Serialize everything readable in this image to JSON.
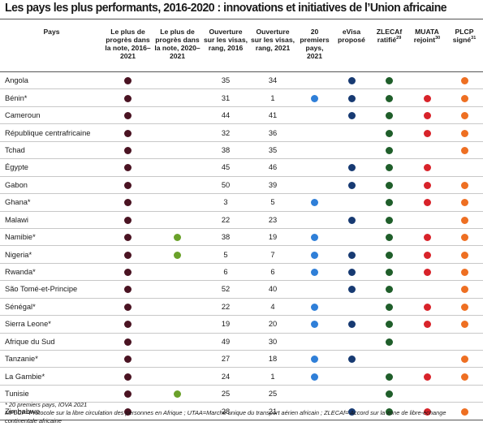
{
  "title": "Les pays les plus performants, 2016-2020 : innovations et initiatives de l’Union africaine",
  "colors": {
    "progress_2016_2021": "#4a1322",
    "progress_2020_2021": "#6aa12a",
    "top20": "#2f7fd8",
    "evisa": "#173a72",
    "zlecaf": "#1f5e2a",
    "muata": "#d8232a",
    "plcp": "#ee6f22"
  },
  "headers": {
    "country": "Pays",
    "progress_2016_2021": "Le plus de progrès dans la note, 2016–2021",
    "progress_2020_2021": "Le plus de progrès dans la note, 2020–2021",
    "visa_2016": "Ouverture sur les visas, rang, 2016",
    "visa_2021": "Ouverture sur les visas, rang, 2021",
    "top20": "20 premiers pays, 2021",
    "evisa": "eVisa proposé",
    "zlecaf": "ZLECAf ratifié",
    "zlecaf_sup": "29",
    "muata": "MUATA rejoint",
    "muata_sup": "30",
    "plcp": "PLCP signé",
    "plcp_sup": "31"
  },
  "rows": [
    {
      "country": "Angola",
      "p16": true,
      "p20": false,
      "v16": "35",
      "v21": "34",
      "top20": false,
      "evisa": true,
      "zlecaf": true,
      "muata": false,
      "plcp": true
    },
    {
      "country": "Bénin*",
      "p16": true,
      "p20": false,
      "v16": "31",
      "v21": "1",
      "top20": true,
      "evisa": true,
      "zlecaf": true,
      "muata": true,
      "plcp": true
    },
    {
      "country": "Cameroun",
      "p16": true,
      "p20": false,
      "v16": "44",
      "v21": "41",
      "top20": false,
      "evisa": true,
      "zlecaf": true,
      "muata": true,
      "plcp": true
    },
    {
      "country": "République centrafricaine",
      "p16": true,
      "p20": false,
      "v16": "32",
      "v21": "36",
      "top20": false,
      "evisa": false,
      "zlecaf": true,
      "muata": true,
      "plcp": true
    },
    {
      "country": "Tchad",
      "p16": true,
      "p20": false,
      "v16": "38",
      "v21": "35",
      "top20": false,
      "evisa": false,
      "zlecaf": true,
      "muata": false,
      "plcp": true
    },
    {
      "country": "Égypte",
      "p16": true,
      "p20": false,
      "v16": "45",
      "v21": "46",
      "top20": false,
      "evisa": true,
      "zlecaf": true,
      "muata": true,
      "plcp": false
    },
    {
      "country": "Gabon",
      "p16": true,
      "p20": false,
      "v16": "50",
      "v21": "39",
      "top20": false,
      "evisa": true,
      "zlecaf": true,
      "muata": true,
      "plcp": true
    },
    {
      "country": "Ghana*",
      "p16": true,
      "p20": false,
      "v16": "3",
      "v21": "5",
      "top20": true,
      "evisa": false,
      "zlecaf": true,
      "muata": true,
      "plcp": true
    },
    {
      "country": "Malawi",
      "p16": true,
      "p20": false,
      "v16": "22",
      "v21": "23",
      "top20": false,
      "evisa": true,
      "zlecaf": true,
      "muata": false,
      "plcp": true
    },
    {
      "country": "Namibie*",
      "p16": true,
      "p20": true,
      "v16": "38",
      "v21": "19",
      "top20": true,
      "evisa": false,
      "zlecaf": true,
      "muata": true,
      "plcp": true
    },
    {
      "country": "Nigeria*",
      "p16": true,
      "p20": true,
      "v16": "5",
      "v21": "7",
      "top20": true,
      "evisa": true,
      "zlecaf": true,
      "muata": true,
      "plcp": true
    },
    {
      "country": "Rwanda*",
      "p16": true,
      "p20": false,
      "v16": "6",
      "v21": "6",
      "top20": true,
      "evisa": true,
      "zlecaf": true,
      "muata": true,
      "plcp": true
    },
    {
      "country": "São Tomé-et-Principe",
      "p16": true,
      "p20": false,
      "v16": "52",
      "v21": "40",
      "top20": false,
      "evisa": true,
      "zlecaf": true,
      "muata": false,
      "plcp": true
    },
    {
      "country": "Sénégal*",
      "p16": true,
      "p20": false,
      "v16": "22",
      "v21": "4",
      "top20": true,
      "evisa": false,
      "zlecaf": true,
      "muata": true,
      "plcp": true
    },
    {
      "country": "Sierra Leone*",
      "p16": true,
      "p20": false,
      "v16": "19",
      "v21": "20",
      "top20": true,
      "evisa": true,
      "zlecaf": true,
      "muata": true,
      "plcp": true
    },
    {
      "country": "Afrique du Sud",
      "p16": true,
      "p20": false,
      "v16": "49",
      "v21": "30",
      "top20": false,
      "evisa": false,
      "zlecaf": true,
      "muata": false,
      "plcp": false
    },
    {
      "country": "Tanzanie*",
      "p16": true,
      "p20": false,
      "v16": "27",
      "v21": "18",
      "top20": true,
      "evisa": true,
      "zlecaf": false,
      "muata": false,
      "plcp": true
    },
    {
      "country": "La Gambie*",
      "p16": true,
      "p20": false,
      "v16": "24",
      "v21": "1",
      "top20": true,
      "evisa": false,
      "zlecaf": true,
      "muata": true,
      "plcp": true
    },
    {
      "country": "Tunisie",
      "p16": true,
      "p20": true,
      "v16": "25",
      "v21": "25",
      "top20": false,
      "evisa": false,
      "zlecaf": true,
      "muata": false,
      "plcp": false
    },
    {
      "country": "Zimbabwe",
      "p16": true,
      "p20": false,
      "v16": "28",
      "v21": "21",
      "top20": false,
      "evisa": true,
      "zlecaf": true,
      "muata": true,
      "plcp": true
    }
  ],
  "notes": {
    "line1": "* 20 premiers pays, IOVA 2021",
    "line2": "MPLCP=Protocole sur la libre circulation des personnes en Afrique ; UTAA=Marché unique du transport aérien africain ; ZLECAf= Accord sur la zone de libre-échange continentale africaine"
  }
}
